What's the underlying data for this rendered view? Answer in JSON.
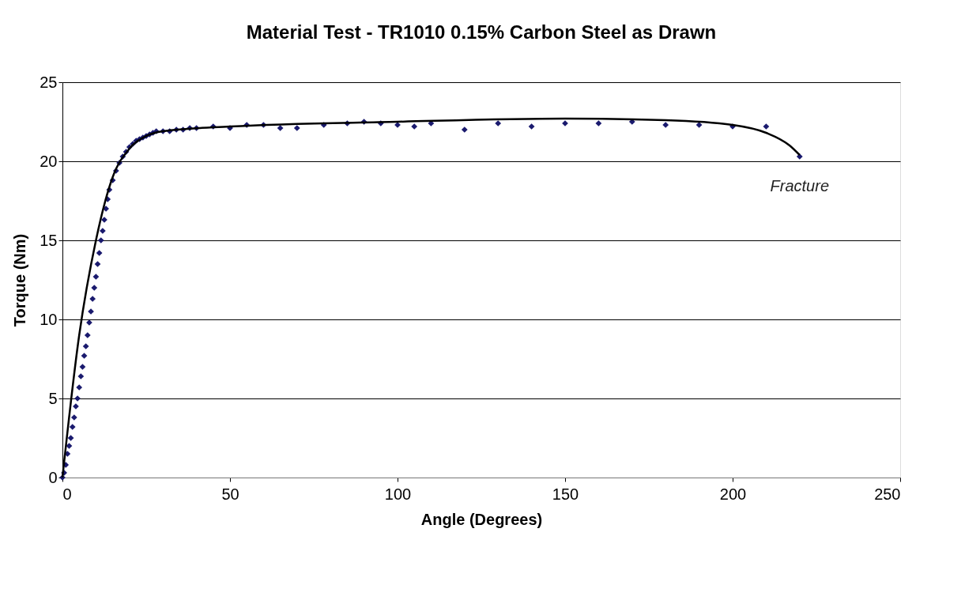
{
  "chart_data": {
    "type": "scatter",
    "title": "Material Test - TR1010 0.15% Carbon Steel as Drawn",
    "xlabel": "Angle (Degrees)",
    "ylabel": "Torque (Nm)",
    "xlim": [
      0,
      250
    ],
    "xticks": [
      0,
      50,
      100,
      150,
      200,
      250
    ],
    "ylim": [
      0,
      25
    ],
    "yticks": [
      0,
      5,
      10,
      15,
      20,
      25
    ],
    "grid": "y",
    "annotations": [
      {
        "text": "Fracture",
        "x": 220,
        "y": 20.3
      }
    ],
    "series": [
      {
        "color": "#1a1a6e",
        "marker": "diamond",
        "x": [
          0,
          0.5,
          1,
          1.5,
          2,
          2.5,
          3,
          3.5,
          4,
          4.5,
          5,
          5.5,
          6,
          6.5,
          7,
          7.5,
          8,
          8.5,
          9,
          9.5,
          10,
          10.5,
          11,
          11.5,
          12,
          12.5,
          13,
          13.5,
          14,
          15,
          16,
          17,
          18,
          19,
          20,
          21,
          22,
          23,
          24,
          25,
          26,
          27,
          28,
          30,
          32,
          34,
          36,
          38,
          40,
          45,
          50,
          55,
          60,
          65,
          70,
          78,
          85,
          90,
          95,
          100,
          105,
          110,
          120,
          130,
          140,
          150,
          160,
          170,
          180,
          190,
          200,
          210,
          220
        ],
        "values": [
          0,
          0.3,
          0.8,
          1.5,
          2,
          2.5,
          3.2,
          3.8,
          4.5,
          5,
          5.7,
          6.4,
          7,
          7.7,
          8.3,
          9,
          9.8,
          10.5,
          11.3,
          12,
          12.7,
          13.5,
          14.2,
          15,
          15.6,
          16.3,
          17,
          17.6,
          18.2,
          18.8,
          19.4,
          19.9,
          20.3,
          20.6,
          20.9,
          21.1,
          21.3,
          21.4,
          21.5,
          21.6,
          21.7,
          21.8,
          21.9,
          21.9,
          21.9,
          22,
          22,
          22.1,
          22.1,
          22.2,
          22.1,
          22.3,
          22.3,
          22.1,
          22.1,
          22.3,
          22.4,
          22.5,
          22.4,
          22.3,
          22.2,
          22.4,
          22.0,
          22.4,
          22.2,
          22.4,
          22.4,
          22.5,
          22.3,
          22.3,
          22.2,
          22.2,
          20.3
        ]
      },
      {
        "type": "line",
        "marker": "none",
        "color": "#000000",
        "x": [
          0,
          5,
          10,
          15,
          20,
          25,
          30,
          50,
          100,
          150,
          180,
          200,
          210,
          217,
          220
        ],
        "values": [
          0,
          9,
          15,
          19,
          20.8,
          21.6,
          21.9,
          22.2,
          22.5,
          22.7,
          22.6,
          22.3,
          21.8,
          21.0,
          20.4
        ]
      }
    ]
  }
}
